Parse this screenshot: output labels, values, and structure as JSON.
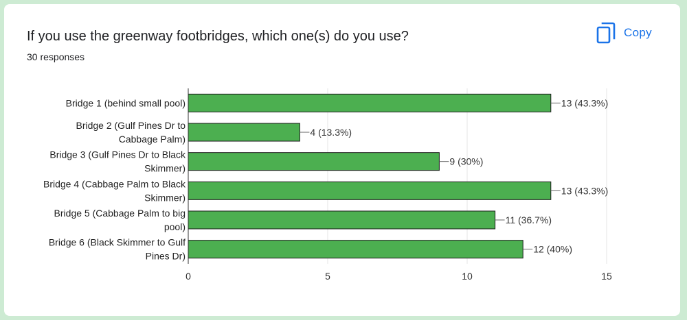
{
  "question": {
    "title": "If you use the greenway footbridges, which one(s) do you use?",
    "responses": "30 responses"
  },
  "copy_button": {
    "label": "Copy",
    "icon": "copy-icon"
  },
  "colors": {
    "bar": "#4caf50",
    "accent": "#1a73e8",
    "background": "#cdebd3"
  },
  "chart_data": {
    "type": "bar",
    "orientation": "horizontal",
    "categories": [
      [
        "Bridge 1 (behind small pool)"
      ],
      [
        "Bridge 2 (Gulf Pines Dr to",
        "Cabbage Palm)"
      ],
      [
        "Bridge 3 (Gulf Pines Dr to Black",
        "Skimmer)"
      ],
      [
        "Bridge 4 (Cabbage Palm to Black",
        "Skimmer)"
      ],
      [
        "Bridge 5 (Cabbage Palm to big",
        "pool)"
      ],
      [
        "Bridge 6 (Black Skimmer to Gulf",
        "Pines Dr)"
      ]
    ],
    "values": [
      13,
      4,
      9,
      13,
      11,
      12
    ],
    "data_labels": [
      "13 (43.3%)",
      "4 (13.3%)",
      "9 (30%)",
      "13 (43.3%)",
      "11 (36.7%)",
      "12 (40%)"
    ],
    "xlim": [
      0,
      15
    ],
    "xticks": [
      0,
      5,
      10,
      15
    ],
    "grid": true,
    "legend": "none"
  }
}
